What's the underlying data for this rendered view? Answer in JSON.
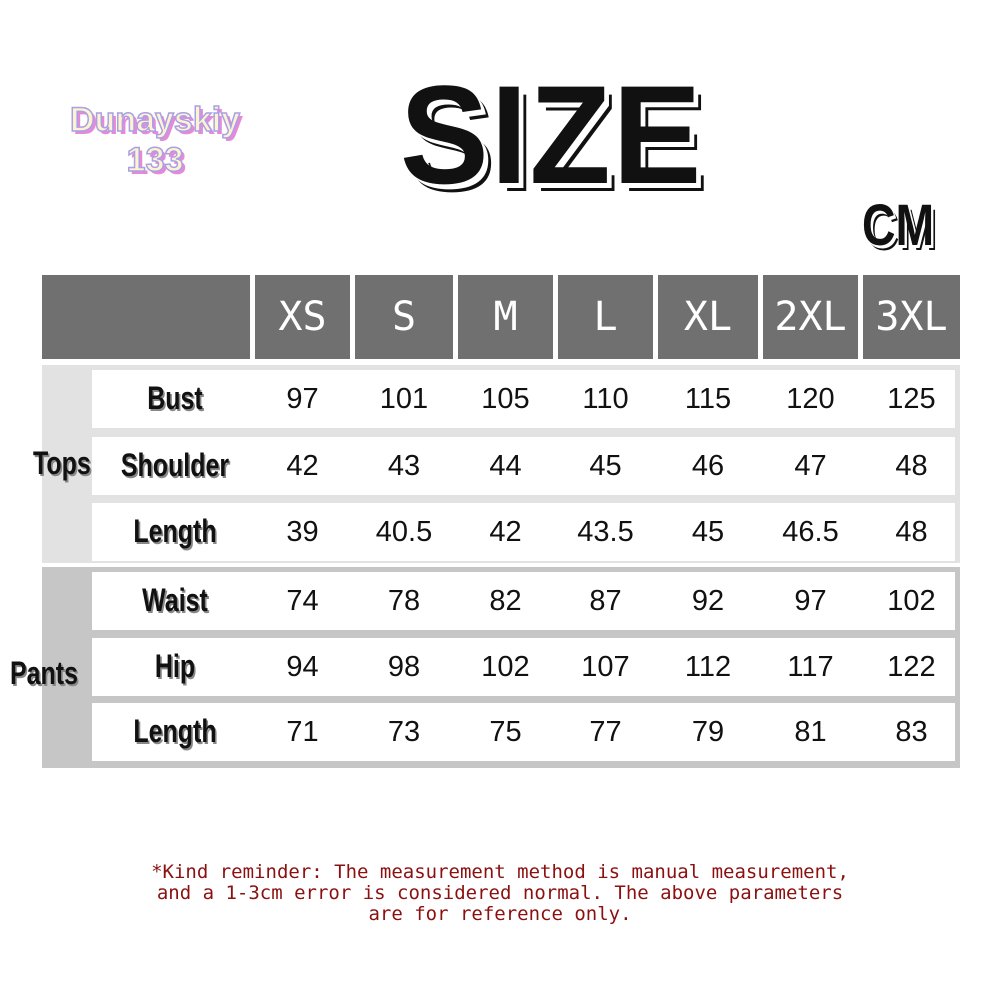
{
  "title": "SIZE",
  "unit": "CM",
  "watermark": {
    "line1": "Dunayskiy",
    "line2": "133"
  },
  "columns": [
    "XS",
    "S",
    "M",
    "L",
    "XL",
    "2XL",
    "3XL"
  ],
  "groups": [
    {
      "label": "Tops",
      "rows": [
        {
          "label": "Bust",
          "values": [
            "97",
            "101",
            "105",
            "110",
            "115",
            "120",
            "125"
          ]
        },
        {
          "label": "Shoulder",
          "values": [
            "42",
            "43",
            "44",
            "45",
            "46",
            "47",
            "48"
          ]
        },
        {
          "label": "Length",
          "values": [
            "39",
            "40.5",
            "42",
            "43.5",
            "45",
            "46.5",
            "48"
          ]
        }
      ]
    },
    {
      "label": "Pants",
      "rows": [
        {
          "label": "Waist",
          "values": [
            "74",
            "78",
            "82",
            "87",
            "92",
            "97",
            "102"
          ]
        },
        {
          "label": "Hip",
          "values": [
            "94",
            "98",
            "102",
            "107",
            "112",
            "117",
            "122"
          ]
        },
        {
          "label": "Length",
          "values": [
            "71",
            "73",
            "75",
            "77",
            "79",
            "81",
            "83"
          ]
        }
      ]
    }
  ],
  "note": {
    "line1": "*Kind reminder: The measurement method is manual measurement,",
    "line2": "and a 1-3cm error is considered normal. The above parameters",
    "line3": "are for reference only."
  },
  "colors": {
    "header": "#707070",
    "tops_bg": "#e2e2e2",
    "pants_bg": "#c6c6c6",
    "note": "#8b1010"
  }
}
